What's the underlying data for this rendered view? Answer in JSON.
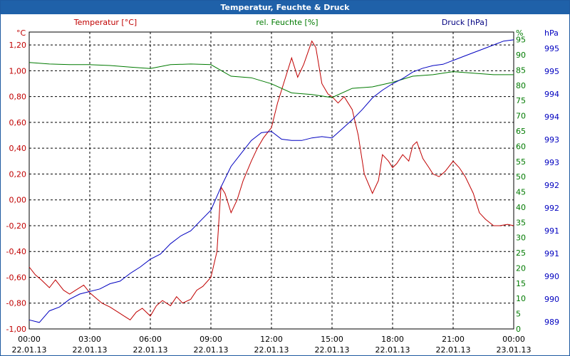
{
  "window": {
    "title": "Temperatur, Feuchte & Druck"
  },
  "colors": {
    "temperature": "#c00000",
    "humidity": "#007a00",
    "pressure": "#0000c0",
    "grid": "#000000",
    "titlebar": "#1f61a9"
  },
  "chart_data": {
    "type": "line",
    "title": "Temperatur, Feuchte & Druck",
    "grid": true,
    "x_ticks": [
      {
        "time": "00:00",
        "date": "22.01.13"
      },
      {
        "time": "03:00",
        "date": "22.01.13"
      },
      {
        "time": "06:00",
        "date": "22.01.13"
      },
      {
        "time": "09:00",
        "date": "22.01.13"
      },
      {
        "time": "12:00",
        "date": "22.01.13"
      },
      {
        "time": "15:00",
        "date": "22.01.13"
      },
      {
        "time": "18:00",
        "date": "22.01.13"
      },
      {
        "time": "21:00",
        "date": "22.01.13"
      },
      {
        "time": "00:00",
        "date": "23.01.13"
      }
    ],
    "xlim": [
      0,
      24
    ],
    "axes": {
      "left": {
        "unit": "°C",
        "label": "Temperatur [°C]",
        "ylim": [
          -1.0,
          1.3
        ],
        "ticks": [
          "1,20",
          "1,00",
          "0,80",
          "0,60",
          "0,40",
          "0,20",
          "0,00",
          "-0,20",
          "-0,40",
          "-0,60",
          "-0,80",
          "-1,00"
        ]
      },
      "right1": {
        "unit": "%",
        "label": "rel. Feuchte [%]",
        "ylim": [
          0,
          97.5
        ],
        "ticks": [
          "95",
          "90",
          "85",
          "80",
          "75",
          "70",
          "65",
          "60",
          "55",
          "50",
          "45",
          "40",
          "35",
          "30",
          "25",
          "20",
          "15",
          "10",
          "5",
          "0"
        ]
      },
      "right2": {
        "unit": "hPa",
        "label": "Druck [hPa]",
        "ticks": [
          "995",
          "995",
          "994",
          "994",
          "993",
          "993",
          "992",
          "992",
          "991",
          "991",
          "990",
          "990",
          "989"
        ]
      }
    },
    "series": [
      {
        "name": "Temperatur [°C]",
        "axis": "left",
        "color": "#c00000",
        "x": [
          0,
          0.3,
          0.6,
          1,
          1.3,
          1.7,
          2,
          2.3,
          2.7,
          3,
          3.3,
          3.6,
          4,
          4.4,
          4.7,
          5,
          5.3,
          5.6,
          6,
          6.3,
          6.6,
          7,
          7.3,
          7.6,
          8,
          8.3,
          8.6,
          9,
          9.3,
          9.5,
          9.7,
          10,
          10.3,
          10.6,
          11,
          11.3,
          11.6,
          12,
          12.3,
          12.6,
          13,
          13.3,
          13.6,
          14,
          14.2,
          14.5,
          14.8,
          15,
          15.3,
          15.6,
          16,
          16.3,
          16.6,
          17,
          17.3,
          17.5,
          17.8,
          18,
          18.2,
          18.5,
          18.8,
          19,
          19.2,
          19.5,
          19.8,
          20,
          20.3,
          20.6,
          21,
          21.3,
          21.6,
          22,
          22.3,
          22.6,
          23,
          23.3,
          23.7,
          24
        ],
        "y": [
          -0.52,
          -0.58,
          -0.62,
          -0.68,
          -0.62,
          -0.7,
          -0.73,
          -0.7,
          -0.66,
          -0.72,
          -0.76,
          -0.8,
          -0.83,
          -0.87,
          -0.9,
          -0.93,
          -0.87,
          -0.84,
          -0.9,
          -0.82,
          -0.78,
          -0.82,
          -0.75,
          -0.8,
          -0.77,
          -0.7,
          -0.67,
          -0.6,
          -0.4,
          0.1,
          0.05,
          -0.1,
          0.0,
          0.15,
          0.3,
          0.4,
          0.48,
          0.56,
          0.75,
          0.9,
          1.1,
          0.95,
          1.05,
          1.23,
          1.18,
          0.9,
          0.82,
          0.8,
          0.75,
          0.8,
          0.7,
          0.5,
          0.2,
          0.05,
          0.15,
          0.35,
          0.3,
          0.25,
          0.28,
          0.35,
          0.3,
          0.42,
          0.45,
          0.32,
          0.25,
          0.2,
          0.18,
          0.22,
          0.3,
          0.25,
          0.18,
          0.05,
          -0.1,
          -0.15,
          -0.2,
          -0.2,
          -0.19,
          -0.2
        ]
      },
      {
        "name": "rel. Feuchte [%]",
        "axis": "right1",
        "color": "#007a00",
        "x": [
          0,
          1,
          2,
          3,
          4,
          5,
          6,
          7,
          8,
          9,
          10,
          11,
          12,
          13,
          14,
          15,
          16,
          17,
          18,
          19,
          20,
          21,
          22,
          23,
          24
        ],
        "y": [
          87.5,
          87.0,
          86.8,
          86.8,
          86.5,
          86.0,
          85.5,
          86.8,
          87.0,
          86.8,
          83.0,
          82.5,
          80.5,
          77.5,
          77.0,
          76.0,
          79.0,
          79.5,
          81.0,
          83.0,
          83.5,
          84.5,
          84.0,
          83.5,
          83.5
        ]
      },
      {
        "name": "Druck [hPa]",
        "axis": "right2",
        "color": "#0000c0",
        "x": [
          0,
          0.5,
          1,
          1.5,
          2,
          2.5,
          3,
          3.5,
          4,
          4.5,
          5,
          5.5,
          6,
          6.5,
          7,
          7.5,
          8,
          8.5,
          9,
          9.5,
          10,
          10.5,
          11,
          11.5,
          12,
          12.5,
          13,
          13.5,
          14,
          14.5,
          15,
          15.5,
          16,
          16.5,
          17,
          17.5,
          18,
          18.5,
          19,
          19.5,
          20,
          20.5,
          21,
          21.5,
          22,
          22.5,
          23,
          23.5,
          24
        ],
        "y": [
          -0.93,
          -0.95,
          -0.86,
          -0.83,
          -0.77,
          -0.73,
          -0.71,
          -0.69,
          -0.65,
          -0.63,
          -0.57,
          -0.52,
          -0.46,
          -0.42,
          -0.34,
          -0.28,
          -0.24,
          -0.16,
          -0.08,
          0.1,
          0.26,
          0.36,
          0.46,
          0.52,
          0.53,
          0.47,
          0.46,
          0.46,
          0.48,
          0.49,
          0.48,
          0.55,
          0.62,
          0.7,
          0.79,
          0.85,
          0.9,
          0.94,
          0.99,
          1.02,
          1.04,
          1.05,
          1.08,
          1.11,
          1.14,
          1.17,
          1.2,
          1.23,
          1.24
        ]
      }
    ]
  }
}
